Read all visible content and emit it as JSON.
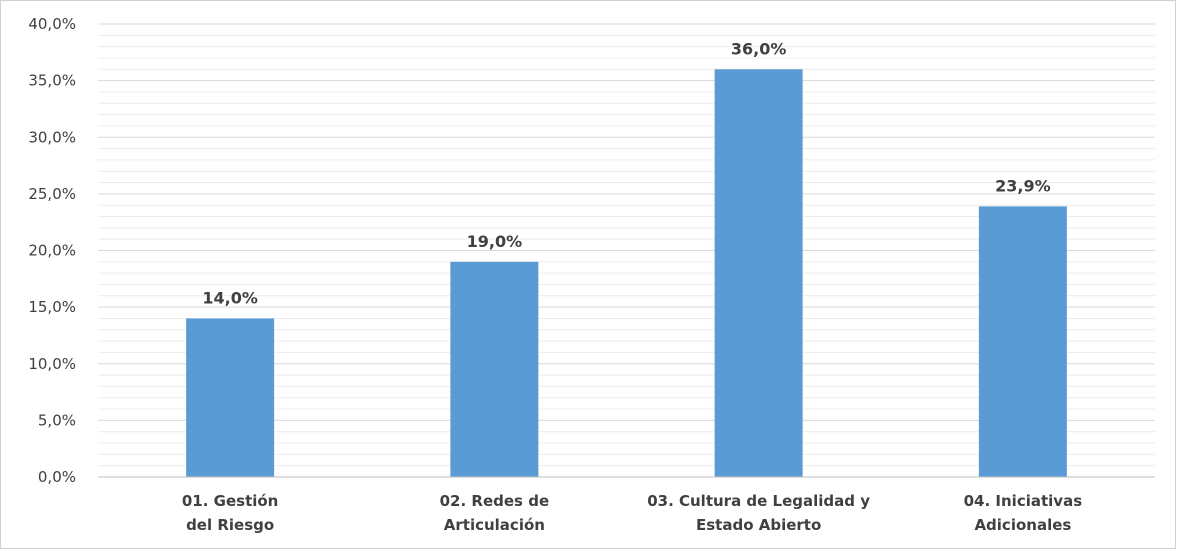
{
  "chart_data": {
    "type": "bar",
    "categories": [
      [
        "01. Gestión",
        "del Riesgo"
      ],
      [
        "02. Redes de",
        "Articulación"
      ],
      [
        "03. Cultura de Legalidad y",
        "Estado Abierto"
      ],
      [
        "04. Iniciativas",
        "Adicionales"
      ]
    ],
    "values": [
      14.0,
      19.0,
      36.0,
      23.9
    ],
    "data_labels": [
      "14,0%",
      "19,0%",
      "36,0%",
      "23,9%"
    ],
    "y_ticks": [
      "0,0%",
      "5,0%",
      "10,0%",
      "15,0%",
      "20,0%",
      "25,0%",
      "30,0%",
      "35,0%",
      "40,0%"
    ],
    "ylim": [
      0,
      40
    ],
    "grid": true,
    "colors": {
      "bar": "#5B9BD5",
      "grid_major": "#d9d9d9",
      "grid_minor": "#ececec",
      "axis": "#bfbfbf"
    }
  }
}
